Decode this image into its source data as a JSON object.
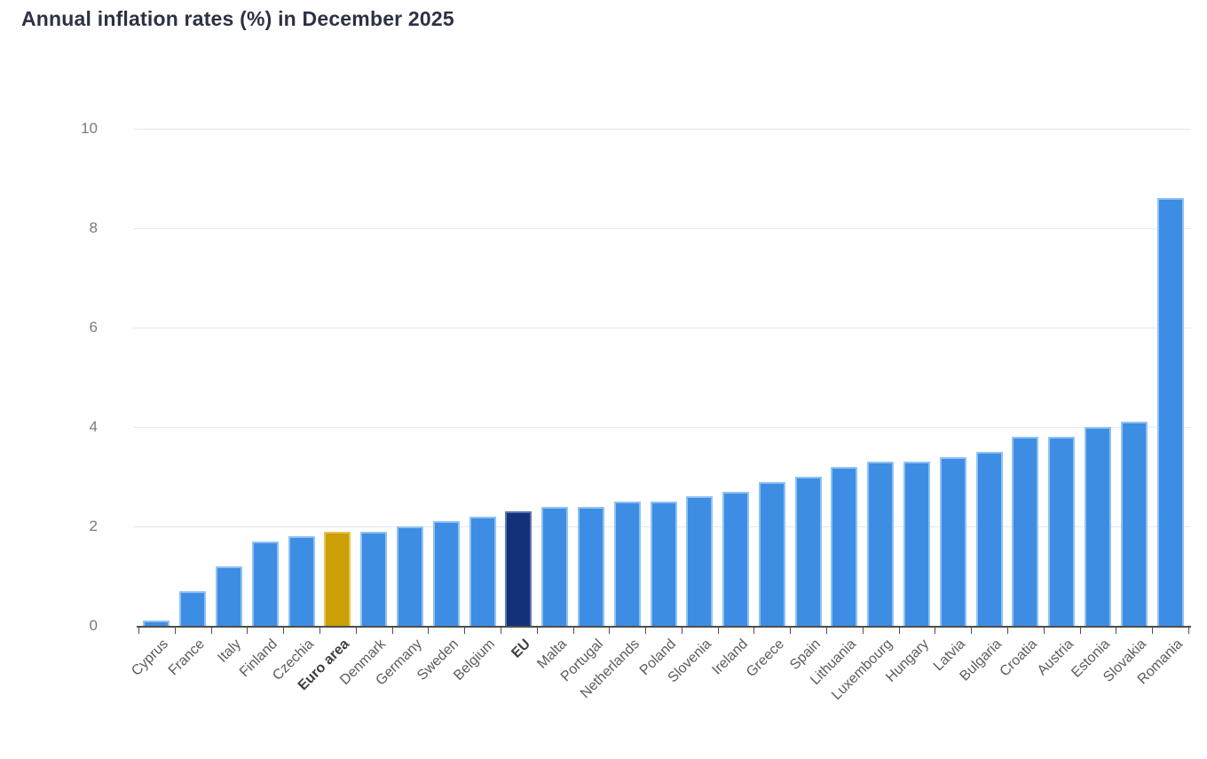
{
  "header": {
    "title": "Annual inflation rates (%) in December 2025"
  },
  "chart_data": {
    "type": "bar",
    "title": "Annual inflation rates (%) in December 2025",
    "xlabel": "",
    "ylabel": "",
    "categories": [
      "Cyprus",
      "France",
      "Italy",
      "Finland",
      "Czechia",
      "Euro area",
      "Denmark",
      "Germany",
      "Sweden",
      "Belgium",
      "EU",
      "Malta",
      "Portugal",
      "Netherlands",
      "Poland",
      "Slovenia",
      "Ireland",
      "Greece",
      "Spain",
      "Lithuania",
      "Luxembourg",
      "Hungary",
      "Latvia",
      "Bulgaria",
      "Croatia",
      "Austria",
      "Estonia",
      "Slovakia",
      "Romania"
    ],
    "values": [
      0.1,
      0.7,
      1.2,
      1.7,
      1.8,
      1.9,
      1.9,
      2.0,
      2.1,
      2.2,
      2.3,
      2.4,
      2.4,
      2.5,
      2.5,
      2.6,
      2.7,
      2.9,
      3.0,
      3.2,
      3.3,
      3.3,
      3.4,
      3.5,
      3.8,
      3.8,
      4.0,
      4.1,
      8.6
    ],
    "emphasized_categories": [
      "Euro area",
      "EU"
    ],
    "ylim": [
      0,
      10
    ],
    "yticks": [
      0,
      2,
      4,
      6,
      8,
      10
    ],
    "grid": "horizontal-only",
    "legend": "none",
    "x_label_rotation_deg": -45,
    "colors": {
      "bar_default": "#3D8DE4",
      "bar_default_border": "#90C2F2",
      "gridline": "#E4E8F4",
      "axis_line": "#4D4D4D",
      "y_label": "#7A7A7A",
      "x_label": "#5C5C5C",
      "title": "#2B3245"
    },
    "point_colors": {
      "Euro area": {
        "fill": "#CC9F08",
        "border": "#E6C44F"
      },
      "EU": {
        "fill": "#143078",
        "border": "#5A77B4"
      }
    }
  }
}
